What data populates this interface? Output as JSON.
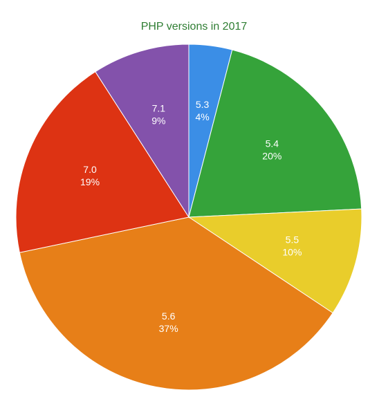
{
  "chart_data": {
    "type": "pie",
    "title": "PHP versions in 2017",
    "title_color": "#2e7d32",
    "start": "12 o'clock",
    "direction": "clockwise",
    "slices": [
      {
        "label": "5.3",
        "value": 4,
        "percent_label": "4%",
        "color": "#3b8ee6"
      },
      {
        "label": "5.4",
        "value": 20,
        "percent_label": "20%",
        "color": "#35a33a"
      },
      {
        "label": "5.5",
        "value": 10,
        "percent_label": "10%",
        "color": "#e9cd2b"
      },
      {
        "label": "5.6",
        "value": 37,
        "percent_label": "37%",
        "color": "#e77f18"
      },
      {
        "label": "7.0",
        "value": 19,
        "percent_label": "19%",
        "color": "#dd3313"
      },
      {
        "label": "7.1",
        "value": 9,
        "percent_label": "9%",
        "color": "#8352ab"
      }
    ]
  }
}
